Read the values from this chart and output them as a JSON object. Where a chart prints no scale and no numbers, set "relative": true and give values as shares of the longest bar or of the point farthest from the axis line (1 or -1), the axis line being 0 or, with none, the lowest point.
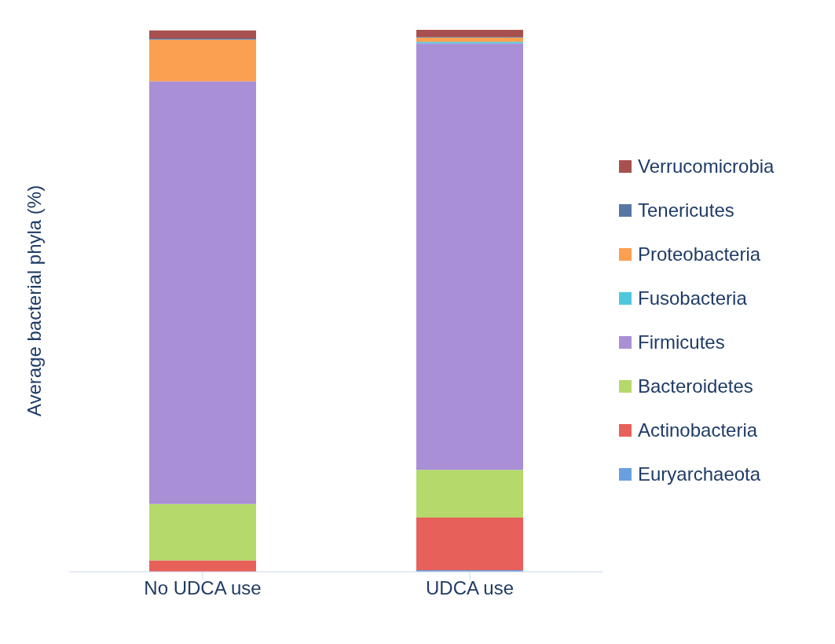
{
  "chart_data": {
    "type": "bar",
    "stacked": true,
    "relative": true,
    "ylabel": "Average bacterial phyla (%)",
    "categories": [
      "No UDCA use",
      "UDCA use"
    ],
    "legend": "right",
    "grid": false,
    "series": [
      {
        "name": "Euryarchaeota",
        "color": "#6a9fe0",
        "values": [
          0,
          0.003
        ]
      },
      {
        "name": "Actinobacteria",
        "color": "#e8605a",
        "values": [
          0.021,
          0.097
        ]
      },
      {
        "name": "Bacteroidetes",
        "color": "#b5d96a",
        "values": [
          0.104,
          0.088
        ]
      },
      {
        "name": "Firmicutes",
        "color": "#a98fd6",
        "values": [
          0.78,
          0.787
        ]
      },
      {
        "name": "Fusobacteria",
        "color": "#4fc8de",
        "values": [
          0,
          0.003
        ]
      },
      {
        "name": "Proteobacteria",
        "color": "#fba050",
        "values": [
          0.077,
          0.008
        ]
      },
      {
        "name": "Tenericutes",
        "color": "#5876a4",
        "values": [
          0.002,
          0.001
        ]
      },
      {
        "name": "Verrucomicrobia",
        "color": "#a8504f",
        "values": [
          0.015,
          0.013
        ]
      }
    ]
  }
}
